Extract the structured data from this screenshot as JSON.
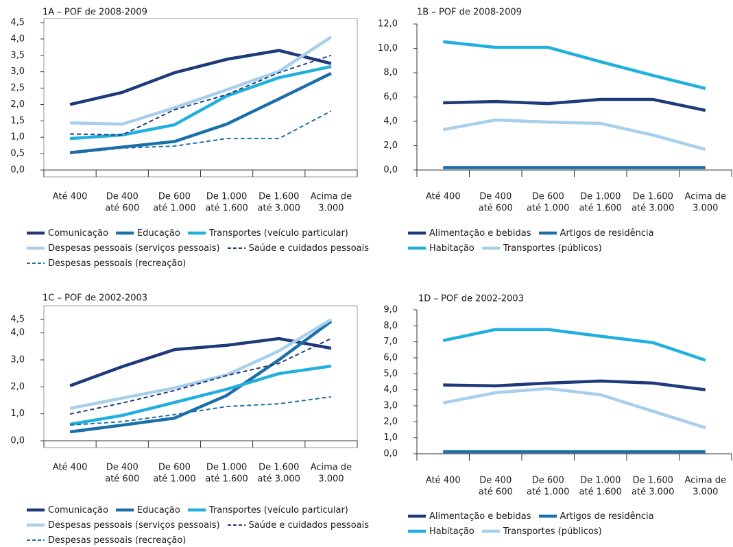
{
  "chart_data": [
    {
      "type": "line",
      "title": "1A – POF de 2008-2009",
      "frame": true,
      "categories": [
        [
          "Até 400"
        ],
        [
          "De 400",
          "até 600"
        ],
        [
          "De 600",
          "até 1.000"
        ],
        [
          "De 1.000",
          "até 1.600"
        ],
        [
          "De 1.600",
          "até 3.000"
        ],
        [
          "Acima de",
          "3.000"
        ]
      ],
      "ylim": [
        0,
        4.5
      ],
      "yticks": [
        {
          "value": 0,
          "label": "0,0"
        },
        {
          "value": 0.5,
          "label": "0,5"
        },
        {
          "value": 1,
          "label": "1,0"
        },
        {
          "value": 1.5,
          "label": "1,5"
        },
        {
          "value": 2,
          "label": "2,0"
        },
        {
          "value": 2.5,
          "label": "2,5"
        },
        {
          "value": 3,
          "label": "3,0"
        },
        {
          "value": 3.5,
          "label": "3,5"
        },
        {
          "value": 4,
          "label": "4,0"
        },
        {
          "value": 4.5,
          "label": "4,5"
        }
      ],
      "series": [
        {
          "name": "Comunicação",
          "color": "#1f3a7a",
          "dash": false,
          "values": [
            2.0,
            2.37,
            2.97,
            3.38,
            3.65,
            3.25
          ]
        },
        {
          "name": "Educação",
          "color": "#1b6fa8",
          "dash": false,
          "values": [
            0.53,
            0.7,
            0.87,
            1.4,
            2.17,
            2.95
          ]
        },
        {
          "name": "Transportes (veículo particular)",
          "color": "#20b0de",
          "dash": false,
          "values": [
            0.96,
            1.07,
            1.38,
            2.26,
            2.82,
            3.16
          ]
        },
        {
          "name": "Despesas  pessoais (serviços pessoais)",
          "color": "#a7cfec",
          "dash": false,
          "values": [
            1.44,
            1.4,
            1.9,
            2.45,
            3.01,
            4.06
          ]
        },
        {
          "name": "Saúde e cuidados pessoais",
          "color": "#1f3a7a",
          "dash": true,
          "values": [
            1.1,
            1.07,
            1.84,
            2.3,
            2.97,
            3.5
          ]
        },
        {
          "name": "Despesas pessoais (recreação)",
          "color": "#1b6fa8",
          "dash": true,
          "values": [
            0.5,
            0.67,
            0.73,
            0.96,
            0.96,
            1.8
          ]
        }
      ]
    },
    {
      "type": "line",
      "title": "1B – POF de 2008-2009",
      "frame": false,
      "categories": [
        [
          "Até 400"
        ],
        [
          "De 400",
          "até 600"
        ],
        [
          "De 600",
          "até 1.000"
        ],
        [
          "De 1.000",
          "até 1.600"
        ],
        [
          "De 1.600",
          "até 3.000"
        ],
        [
          "Acima de",
          "3.000"
        ]
      ],
      "ylim": [
        0,
        12
      ],
      "yticks": [
        {
          "value": 0,
          "label": "0,0"
        },
        {
          "value": 2,
          "label": "2,0"
        },
        {
          "value": 4,
          "label": "4,0"
        },
        {
          "value": 6,
          "label": "6,0"
        },
        {
          "value": 8,
          "label": "8,0"
        },
        {
          "value": 10,
          "label": "10,0"
        },
        {
          "value": 12,
          "label": "12,0"
        }
      ],
      "series": [
        {
          "name": "Alimentação e bebidas",
          "color": "#1f3a7a",
          "dash": false,
          "values": [
            5.52,
            5.63,
            5.46,
            5.8,
            5.8,
            4.9
          ]
        },
        {
          "name": "Artigos de residência",
          "color": "#1b6fa8",
          "dash": false,
          "values": [
            0.2,
            0.2,
            0.2,
            0.2,
            0.2,
            0.2
          ]
        },
        {
          "name": "Habitação",
          "color": "#20b0de",
          "dash": false,
          "values": [
            10.54,
            10.08,
            10.08,
            8.9,
            7.77,
            6.7
          ]
        },
        {
          "name": "Transportes (públicos)",
          "color": "#a7cfec",
          "dash": false,
          "values": [
            3.32,
            4.11,
            3.94,
            3.83,
            2.87,
            1.69
          ]
        }
      ]
    },
    {
      "type": "line",
      "title": "1C – POF de 2002-2003",
      "frame": true,
      "categories": [
        [
          "Até 400"
        ],
        [
          "De 400",
          "até 600"
        ],
        [
          "De 600",
          "até 1.000"
        ],
        [
          "De 1.000",
          "até 1.600"
        ],
        [
          "De 1.600",
          "até 3.000"
        ],
        [
          "Acima de",
          "3.000"
        ]
      ],
      "ylim": [
        0,
        4.5
      ],
      "yticks": [
        {
          "value": 0,
          "label": "0,0"
        },
        {
          "value": 1,
          "label": "1,0"
        },
        {
          "value": 2,
          "label": "2,0"
        },
        {
          "value": 3,
          "label": "3,0"
        },
        {
          "value": 4,
          "label": "4,0"
        },
        {
          "value": 4.5,
          "label": "4,5"
        }
      ],
      "series": [
        {
          "name": "Comunicação",
          "color": "#1f3a7a",
          "dash": false,
          "values": [
            2.04,
            2.75,
            3.38,
            3.54,
            3.79,
            3.43
          ]
        },
        {
          "name": "Educação",
          "color": "#1b6fa8",
          "dash": false,
          "values": [
            0.33,
            0.58,
            0.84,
            1.68,
            3.0,
            4.43
          ]
        },
        {
          "name": "Transportes (veículo particular)",
          "color": "#20b0de",
          "dash": false,
          "values": [
            0.61,
            0.94,
            1.42,
            1.91,
            2.49,
            2.77
          ]
        },
        {
          "name": "Despesas  pessoais (serviços pessoais)",
          "color": "#a7cfec",
          "dash": false,
          "values": [
            1.2,
            1.58,
            1.96,
            2.44,
            3.33,
            4.5
          ]
        },
        {
          "name": "Saúde e cuidados pessoais",
          "color": "#1f3a7a",
          "dash": true,
          "values": [
            0.99,
            1.4,
            1.86,
            2.42,
            2.87,
            3.79
          ]
        },
        {
          "name": "Despesas pessoais (recreação)",
          "color": "#1b6fa8",
          "dash": true,
          "values": [
            0.58,
            0.71,
            0.97,
            1.27,
            1.37,
            1.63
          ]
        }
      ]
    },
    {
      "type": "line",
      "title": "1D – POF de 2002-2003",
      "frame": false,
      "categories": [
        [
          "Até 400"
        ],
        [
          "De 400",
          "até 600"
        ],
        [
          "De 600",
          "até 1.000"
        ],
        [
          "De 1.000",
          "até 1.600"
        ],
        [
          "De 1.600",
          "até 3.000"
        ],
        [
          "Acima de",
          "3.000"
        ]
      ],
      "ylim": [
        0,
        9
      ],
      "yticks": [
        {
          "value": 0,
          "label": "0,0"
        },
        {
          "value": 1,
          "label": "1,0"
        },
        {
          "value": 2,
          "label": "2,0"
        },
        {
          "value": 3,
          "label": "3,0"
        },
        {
          "value": 4,
          "label": "4,0"
        },
        {
          "value": 5,
          "label": "5,0"
        },
        {
          "value": 6,
          "label": "6,0"
        },
        {
          "value": 7,
          "label": "7,0"
        },
        {
          "value": 8,
          "label": "8,0"
        },
        {
          "value": 9,
          "label": "9,0"
        }
      ],
      "series": [
        {
          "name": "Alimentação e bebidas",
          "color": "#1f3a7a",
          "dash": false,
          "values": [
            4.3,
            4.25,
            4.42,
            4.55,
            4.42,
            4.0
          ]
        },
        {
          "name": "Artigos de residência",
          "color": "#1b6fa8",
          "dash": false,
          "values": [
            0.13,
            0.13,
            0.13,
            0.13,
            0.13,
            0.13
          ]
        },
        {
          "name": "Habitação",
          "color": "#20b0de",
          "dash": false,
          "values": [
            7.08,
            7.77,
            7.77,
            7.35,
            6.95,
            5.85
          ]
        },
        {
          "name": "Transportes (públicos)",
          "color": "#a7cfec",
          "dash": false,
          "values": [
            3.18,
            3.82,
            4.08,
            3.69,
            2.66,
            1.63
          ]
        }
      ]
    }
  ]
}
